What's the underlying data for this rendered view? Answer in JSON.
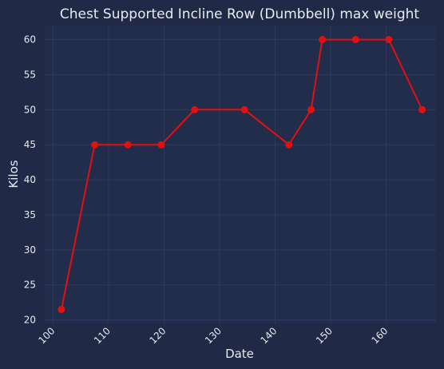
{
  "chart_data": {
    "type": "line",
    "title": "Chest Supported Incline Row (Dumbbell) max weight",
    "xlabel": "Date",
    "ylabel": "Kilos",
    "xlim": [
      98.5,
      169
    ],
    "ylim": [
      19.5,
      62
    ],
    "x_ticks": [
      100,
      110,
      120,
      130,
      140,
      150,
      160
    ],
    "y_ticks": [
      20,
      25,
      30,
      35,
      40,
      45,
      50,
      55,
      60
    ],
    "grid": true,
    "series": [
      {
        "color": "#e31010",
        "x": [
          101.5,
          107.5,
          113.5,
          119.5,
          125.5,
          134.5,
          142.5,
          146.5,
          148.5,
          154.5,
          160.5,
          166.5
        ],
        "y": [
          21.5,
          45,
          45,
          45,
          50,
          50,
          45,
          50,
          60,
          60,
          60,
          50
        ]
      }
    ]
  }
}
